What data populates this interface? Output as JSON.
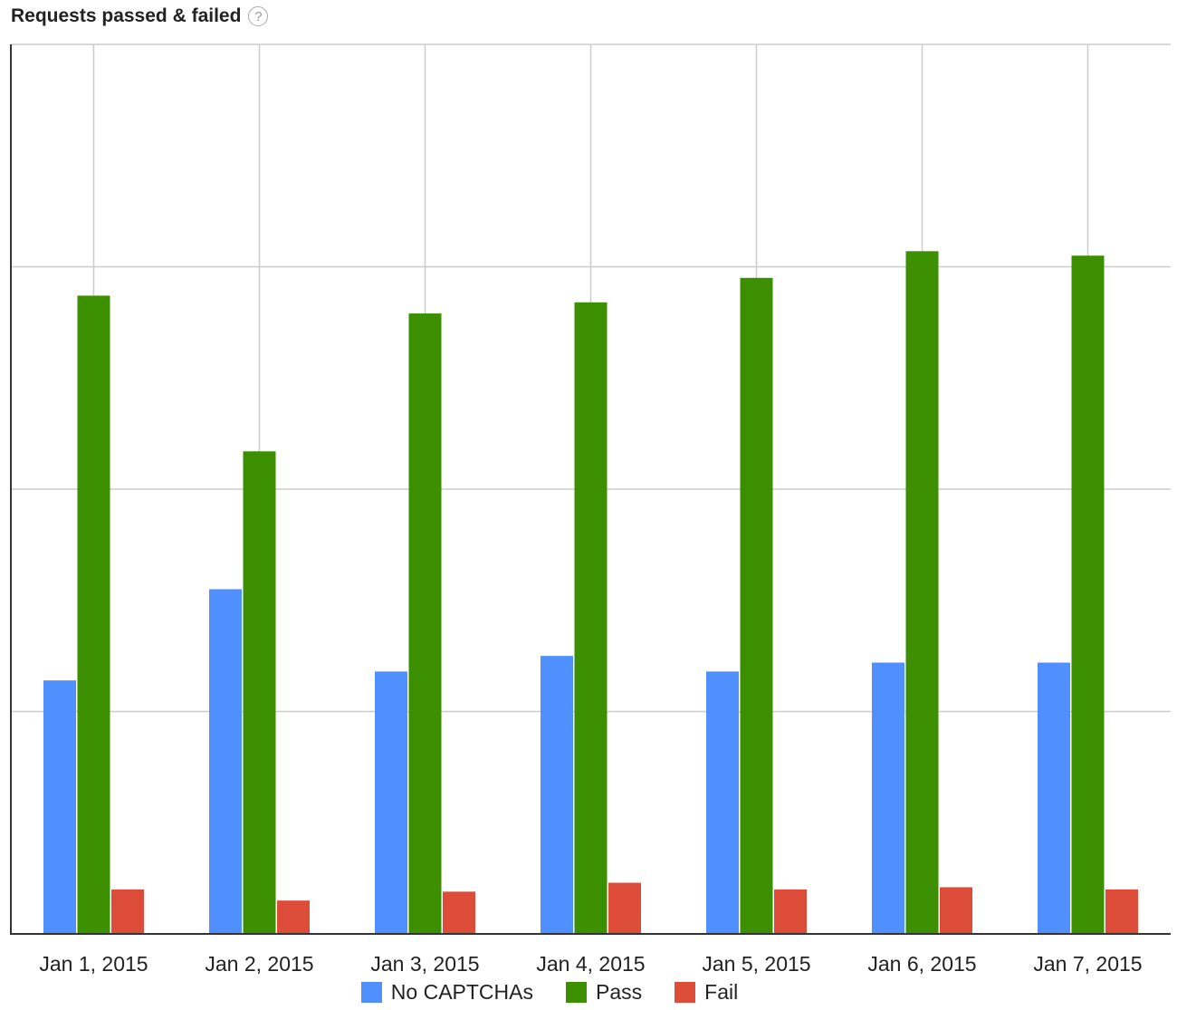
{
  "header": {
    "title": "Requests passed & failed",
    "help_icon_glyph": "?"
  },
  "chart_data": {
    "type": "bar",
    "title": "Requests passed & failed",
    "xlabel": "",
    "ylabel": "",
    "ylim": [
      0,
      4
    ],
    "y_gridlines": [
      1,
      2,
      3,
      4
    ],
    "y_tick_labels_visible": false,
    "categories": [
      "Jan 1, 2015",
      "Jan 2, 2015",
      "Jan 3, 2015",
      "Jan 4, 2015",
      "Jan 5, 2015",
      "Jan 6, 2015",
      "Jan 7, 2015"
    ],
    "series": [
      {
        "name": "No CAPTCHAs",
        "color": "#4f8ffe",
        "values": [
          1.14,
          1.55,
          1.18,
          1.25,
          1.18,
          1.22,
          1.22
        ]
      },
      {
        "name": "Pass",
        "color": "#3b8f00",
        "values": [
          2.87,
          2.17,
          2.79,
          2.84,
          2.95,
          3.07,
          3.05
        ]
      },
      {
        "name": "Fail",
        "color": "#dd4b39",
        "values": [
          0.2,
          0.15,
          0.19,
          0.23,
          0.2,
          0.21,
          0.2
        ]
      }
    ],
    "legend_position": "bottom-center",
    "grid": true
  }
}
